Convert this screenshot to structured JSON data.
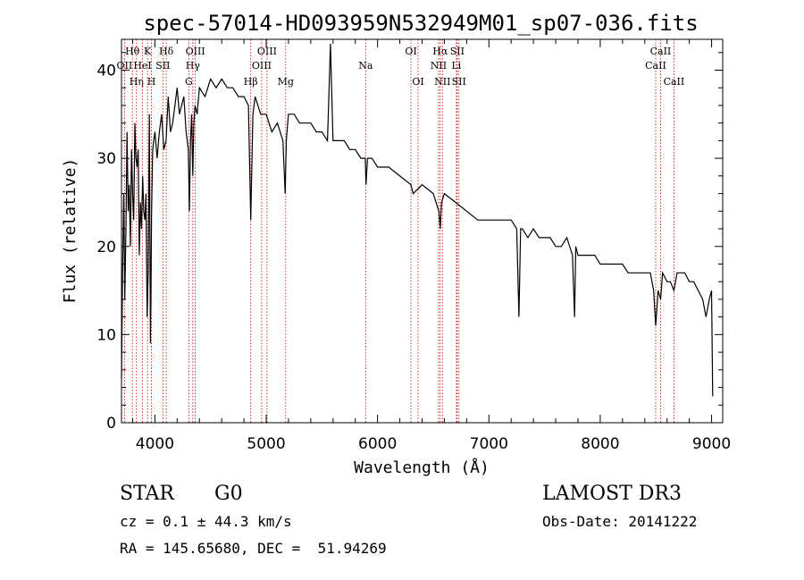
{
  "chart_data": {
    "type": "line",
    "title": "spec-57014-HD093959N532949M01_sp07-036.fits",
    "xlabel": "Wavelength (Å)",
    "ylabel": "Flux (relative)",
    "xlim": [
      3700,
      9100
    ],
    "ylim": [
      0,
      43.5
    ],
    "xticks": [
      4000,
      5000,
      6000,
      7000,
      8000,
      9000
    ],
    "yticks": [
      0,
      10,
      20,
      30,
      40
    ],
    "grid": false,
    "series": [
      {
        "name": "flux",
        "x": [
          3700,
          3710,
          3720,
          3730,
          3740,
          3750,
          3760,
          3770,
          3780,
          3790,
          3800,
          3810,
          3820,
          3830,
          3840,
          3850,
          3860,
          3870,
          3880,
          3890,
          3900,
          3910,
          3920,
          3930,
          3940,
          3950,
          3960,
          3970,
          3980,
          3990,
          4000,
          4020,
          4040,
          4060,
          4080,
          4100,
          4120,
          4140,
          4160,
          4180,
          4200,
          4220,
          4240,
          4260,
          4280,
          4300,
          4310,
          4320,
          4330,
          4340,
          4350,
          4360,
          4380,
          4400,
          4450,
          4500,
          4550,
          4600,
          4650,
          4700,
          4750,
          4800,
          4840,
          4861,
          4880,
          4900,
          4950,
          5000,
          5050,
          5100,
          5150,
          5170,
          5180,
          5200,
          5250,
          5300,
          5350,
          5400,
          5450,
          5500,
          5550,
          5577,
          5600,
          5650,
          5700,
          5750,
          5800,
          5850,
          5890,
          5896,
          5910,
          5950,
          6000,
          6100,
          6200,
          6300,
          6320,
          6400,
          6500,
          6550,
          6563,
          6575,
          6600,
          6700,
          6800,
          6900,
          7000,
          7100,
          7200,
          7250,
          7270,
          7285,
          7300,
          7350,
          7400,
          7450,
          7500,
          7550,
          7600,
          7650,
          7700,
          7750,
          7770,
          7780,
          7800,
          7850,
          7900,
          7950,
          8000,
          8050,
          8100,
          8150,
          8200,
          8250,
          8300,
          8350,
          8400,
          8450,
          8480,
          8498,
          8520,
          8542,
          8560,
          8600,
          8630,
          8662,
          8690,
          8720,
          8760,
          8800,
          8840,
          8880,
          8920,
          8950,
          8980,
          9000,
          9010
        ],
        "y": [
          5,
          17,
          26,
          14,
          22,
          33,
          24,
          27,
          20,
          31,
          26,
          23,
          34,
          30,
          29,
          31,
          19,
          25,
          22,
          28,
          24,
          23,
          26,
          12,
          17,
          35,
          9,
          24,
          31,
          32,
          33,
          30,
          33,
          35,
          31,
          32,
          37,
          33,
          34,
          36,
          38,
          35,
          36,
          37,
          33,
          31,
          24,
          32,
          35,
          28,
          34,
          36,
          35,
          38,
          37,
          39,
          38,
          39,
          38,
          38,
          37,
          37,
          36,
          23,
          35,
          37,
          35,
          35,
          33,
          34,
          32,
          26,
          32,
          35,
          35,
          34,
          34,
          34,
          33,
          33,
          32,
          43,
          32,
          32,
          32,
          31,
          31,
          30,
          30,
          27,
          30,
          30,
          29,
          29,
          28,
          27,
          26,
          27,
          26,
          24,
          22,
          25,
          26,
          25,
          24,
          23,
          23,
          23,
          23,
          22,
          12,
          22,
          22,
          21,
          22,
          21,
          21,
          21,
          20,
          20,
          21,
          19,
          12,
          20,
          19,
          19,
          19,
          19,
          18,
          18,
          18,
          18,
          18,
          17,
          17,
          17,
          17,
          17,
          15,
          11,
          15,
          14,
          17,
          16,
          16,
          15,
          17,
          17,
          17,
          16,
          16,
          15,
          14,
          12,
          14,
          15,
          3
        ]
      }
    ],
    "lines": [
      {
        "label": "Hθ",
        "row": 1,
        "x": 3798
      },
      {
        "label": "OII",
        "row": 2,
        "x": 3727
      },
      {
        "label": "Hη",
        "row": 3,
        "x": 3835
      },
      {
        "label": "K",
        "row": 1,
        "x": 3934
      },
      {
        "label": "HeI",
        "row": 2,
        "x": 3889
      },
      {
        "label": "H",
        "row": 3,
        "x": 3969
      },
      {
        "label": "Hδ",
        "row": 1,
        "x": 4102
      },
      {
        "label": "SII",
        "row": 2,
        "x": 4072
      },
      {
        "label": "OIII",
        "row": 1,
        "x": 4363
      },
      {
        "label": "Hγ",
        "row": 2,
        "x": 4341
      },
      {
        "label": "G",
        "row": 3,
        "x": 4305
      },
      {
        "label": "Hβ",
        "row": 3,
        "x": 4861
      },
      {
        "label": "OIII",
        "row": 1,
        "x": 5007
      },
      {
        "label": "OIII",
        "row": 2,
        "x": 4959
      },
      {
        "label": "Mg",
        "row": 3,
        "x": 5175
      },
      {
        "label": "Na",
        "row": 2,
        "x": 5893
      },
      {
        "label": "OI",
        "row": 1,
        "x": 6300
      },
      {
        "label": "OI",
        "row": 3,
        "x": 6364
      },
      {
        "label": "Hα",
        "row": 1,
        "x": 6563
      },
      {
        "label": "SII",
        "row": 1,
        "x": 6716
      },
      {
        "label": "NII",
        "row": 2,
        "x": 6548
      },
      {
        "label": "Li",
        "row": 2,
        "x": 6708
      },
      {
        "label": "NII",
        "row": 3,
        "x": 6583
      },
      {
        "label": "SII",
        "row": 3,
        "x": 6731
      },
      {
        "label": "CaII",
        "row": 1,
        "x": 8542
      },
      {
        "label": "CaII",
        "row": 2,
        "x": 8498
      },
      {
        "label": "CaII",
        "row": 3,
        "x": 8662
      }
    ]
  },
  "info": {
    "class_label": "STAR",
    "subclass": "G0",
    "survey": "LAMOST DR3",
    "cz": "cz = 0.1 ± 44.3 km/s",
    "obs_date": "Obs-Date: 20141222",
    "coords": "RA = 145.65680, DEC =  51.94269"
  },
  "colors": {
    "line": "#000000",
    "marker": "#cc0000"
  }
}
